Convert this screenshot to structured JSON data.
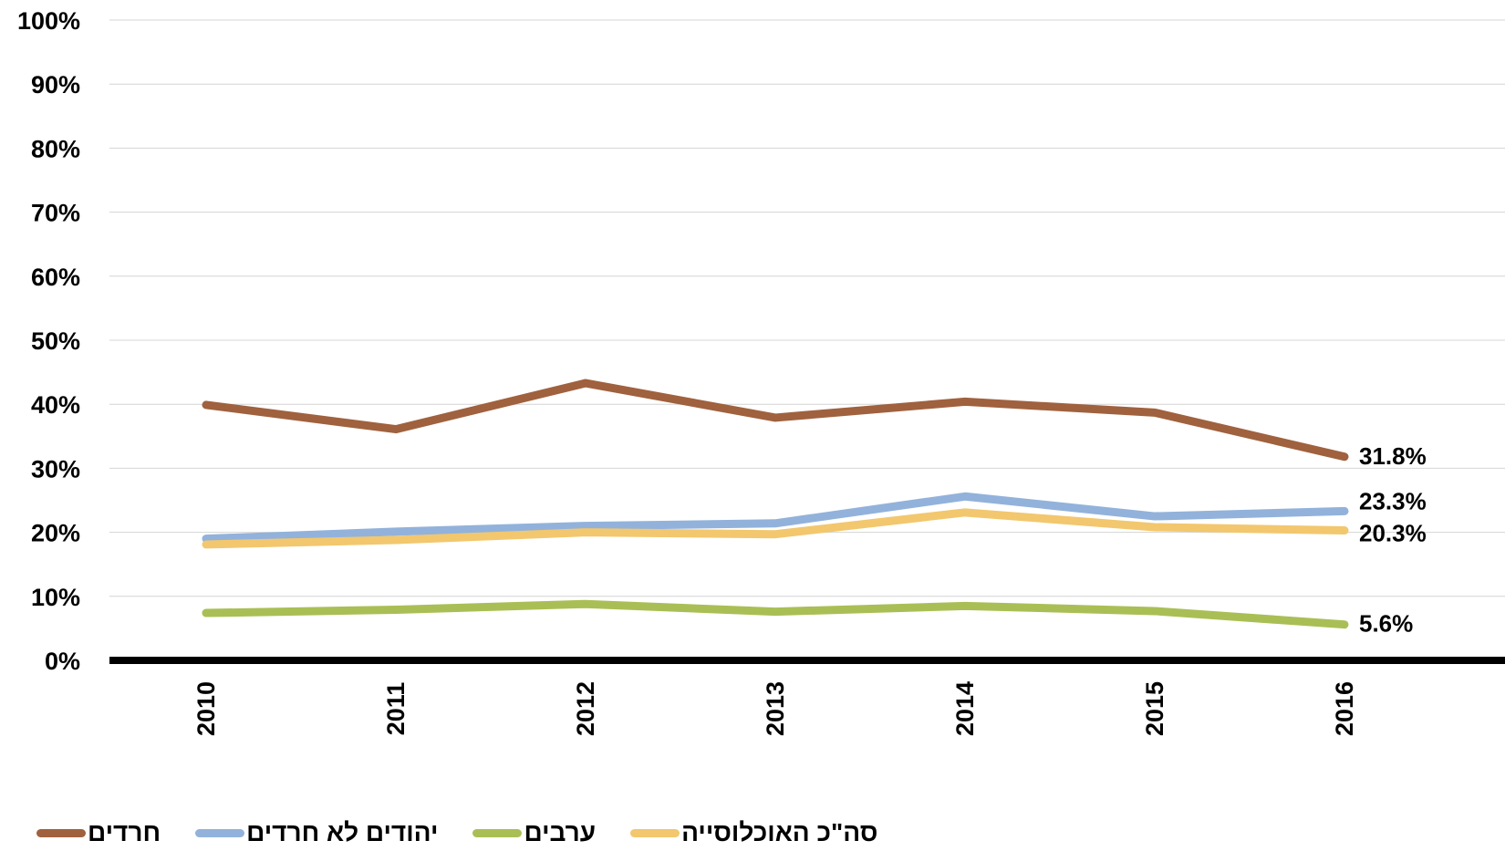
{
  "chart_data": {
    "type": "line",
    "title": "",
    "xlabel": "",
    "ylabel": "",
    "categories": [
      "2010",
      "2011",
      "2012",
      "2013",
      "2014",
      "2015",
      "2016"
    ],
    "ylim": [
      0,
      100
    ],
    "yticks": [
      "0%",
      "10%",
      "20%",
      "30%",
      "40%",
      "50%",
      "60%",
      "70%",
      "80%",
      "90%",
      "100%"
    ],
    "grid": true,
    "legend_position": "bottom",
    "series": [
      {
        "name": "חרדים",
        "color": "#A0613E",
        "values": [
          39.9,
          36.1,
          43.3,
          37.9,
          40.4,
          38.7,
          31.8
        ],
        "end_label": "31.8%"
      },
      {
        "name": "יהודים לא חרדים",
        "color": "#92B2DB",
        "values": [
          19.0,
          20.1,
          21.0,
          21.4,
          25.6,
          22.5,
          23.3
        ],
        "end_label": "23.3%"
      },
      {
        "name": "ערבים",
        "color": "#A9BF55",
        "values": [
          7.4,
          7.9,
          8.8,
          7.6,
          8.5,
          7.7,
          5.6
        ],
        "end_label": "5.6%"
      },
      {
        "name": "סה\"כ האוכלוסייה",
        "color": "#F2C76E",
        "values": [
          18.1,
          18.8,
          20.0,
          19.7,
          23.1,
          20.8,
          20.3
        ],
        "end_label": "20.3%"
      }
    ]
  }
}
